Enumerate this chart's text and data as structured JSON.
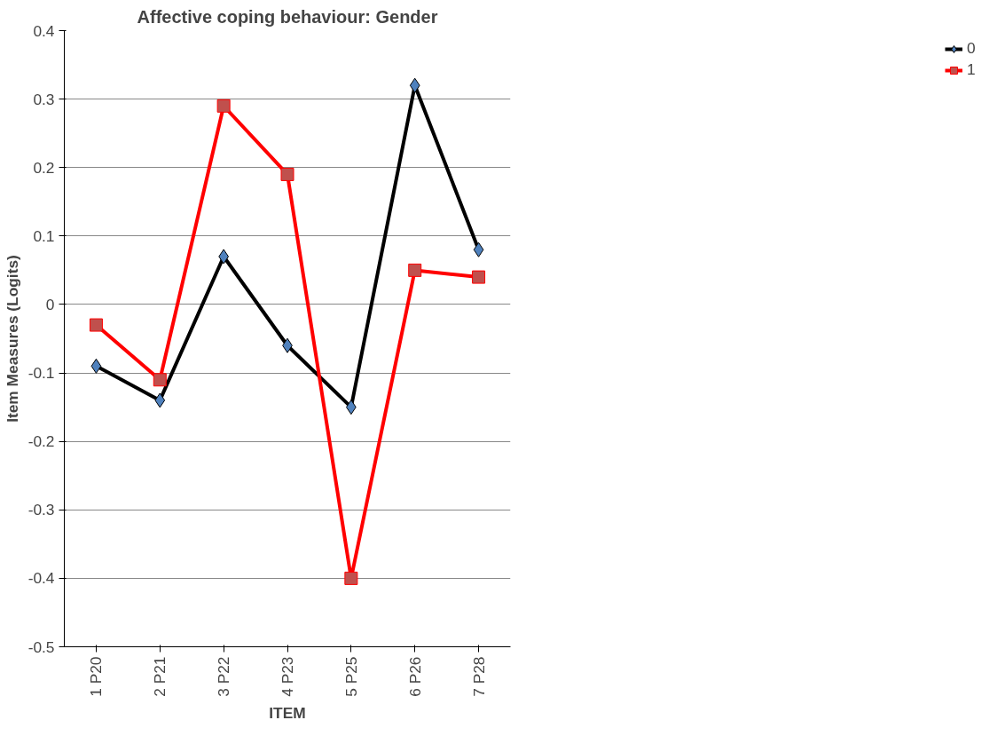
{
  "chart_data": {
    "type": "line",
    "title": "Affective coping behaviour: Gender",
    "xlabel": "ITEM",
    "ylabel": "Item Measures (Logits)",
    "categories": [
      "1 P20",
      "2 P21",
      "3 P22",
      "4 P23",
      "5 P25",
      "6 P26",
      "7 P28"
    ],
    "series": [
      {
        "name": "0",
        "color": "#000000",
        "colors": [
          "#4f81bd",
          "#4f81bd",
          "#4f81bd",
          "#4f81bd",
          "#4f81bd",
          "#4f81bd",
          "#4f81bd"
        ],
        "marker": "diamond",
        "values": [
          -0.09,
          -0.14,
          0.07,
          -0.06,
          -0.15,
          0.32,
          0.08
        ]
      },
      {
        "name": "1",
        "color": "#ff0000",
        "colors": [
          "#c0504d",
          "#c0504d",
          "#c0504d",
          "#c0504d",
          "#c0504d",
          "#c0504d",
          "#c0504d"
        ],
        "marker": "square",
        "values": [
          -0.03,
          -0.11,
          0.29,
          0.19,
          -0.4,
          0.05,
          0.04
        ]
      }
    ],
    "ylim": [
      -0.5,
      0.4
    ],
    "yticks": [
      {
        "value": -0.5,
        "label": "-0.5"
      },
      {
        "value": -0.4,
        "label": "-0.4"
      },
      {
        "value": -0.3,
        "label": "-0.3"
      },
      {
        "value": -0.2,
        "label": "-0.2"
      },
      {
        "value": -0.1,
        "label": "-0.1"
      },
      {
        "value": 0,
        "label": "0"
      },
      {
        "value": 0.1,
        "label": "0.1"
      },
      {
        "value": 0.2,
        "label": "0.2"
      },
      {
        "value": 0.3,
        "label": "0.3"
      },
      {
        "value": 0.4,
        "label": "0.4"
      }
    ],
    "grid": "y",
    "legend": "right",
    "line_style": "solid"
  }
}
